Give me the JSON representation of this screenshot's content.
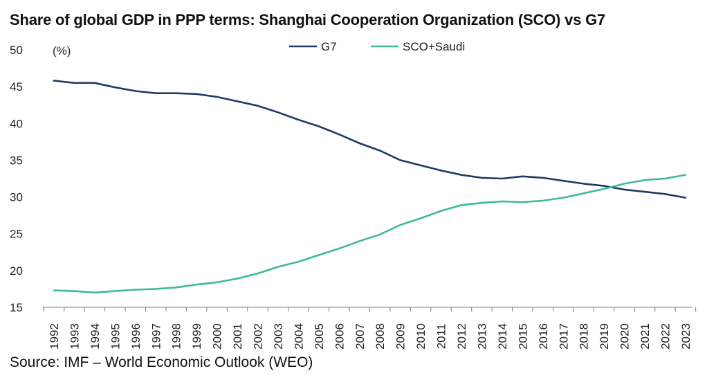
{
  "chart_data": {
    "type": "line",
    "title": "Share of global GDP in PPP terms: Shanghai Cooperation Organization (SCO) vs G7",
    "ylabel": "(%)",
    "xlabel": "",
    "source": "Source: IMF – World Economic Outlook (WEO)",
    "ylim": [
      15,
      50
    ],
    "yticks": [
      "15",
      "20",
      "25",
      "30",
      "35",
      "40",
      "45",
      "50"
    ],
    "x": [
      "1992",
      "1993",
      "1994",
      "1995",
      "1996",
      "1997",
      "1998",
      "1999",
      "2000",
      "2001",
      "2002",
      "2003",
      "2004",
      "2005",
      "2006",
      "2007",
      "2008",
      "2009",
      "2010",
      "2011",
      "2012",
      "2013",
      "2014",
      "2015",
      "2016",
      "2017",
      "2018",
      "2019",
      "2020",
      "2021",
      "2022",
      "2023"
    ],
    "series": [
      {
        "name": "G7",
        "color": "#1f3a63",
        "values": [
          45.8,
          45.5,
          45.5,
          44.9,
          44.4,
          44.1,
          44.1,
          44.0,
          43.6,
          43.0,
          42.4,
          41.5,
          40.5,
          39.6,
          38.5,
          37.3,
          36.3,
          35.0,
          34.3,
          33.6,
          33.0,
          32.6,
          32.5,
          32.8,
          32.6,
          32.2,
          31.8,
          31.5,
          31.0,
          30.7,
          30.4,
          29.9
        ]
      },
      {
        "name": "SCO+Saudi",
        "color": "#3db99e",
        "values": [
          17.3,
          17.2,
          17.0,
          17.2,
          17.4,
          17.5,
          17.7,
          18.1,
          18.4,
          18.9,
          19.6,
          20.5,
          21.2,
          22.1,
          23.0,
          24.0,
          24.9,
          26.2,
          27.1,
          28.1,
          28.9,
          29.2,
          29.4,
          29.3,
          29.5,
          29.9,
          30.5,
          31.1,
          31.8,
          32.3,
          32.5,
          33.0
        ]
      }
    ],
    "legend_position": "top-center",
    "grid": false
  }
}
